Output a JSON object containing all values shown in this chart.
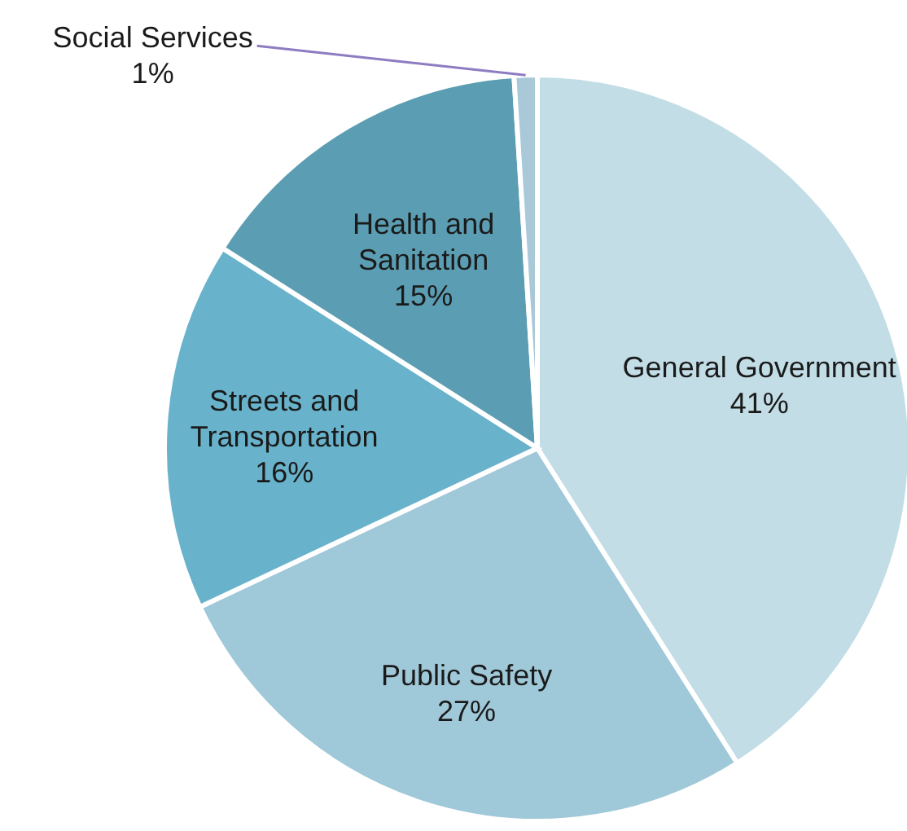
{
  "chart_data": {
    "type": "pie",
    "categories": [
      "General Government",
      "Public Safety",
      "Streets and Transportation",
      "Health and Sanitation",
      "Social Services"
    ],
    "values": [
      41,
      27,
      16,
      15,
      1
    ],
    "value_labels": [
      "41%",
      "27%",
      "16%",
      "15%",
      "1%"
    ],
    "colors": [
      "#c2dde6",
      "#9fc8d9",
      "#68b3cb",
      "#5b9db2",
      "#a9c9d8"
    ]
  }
}
